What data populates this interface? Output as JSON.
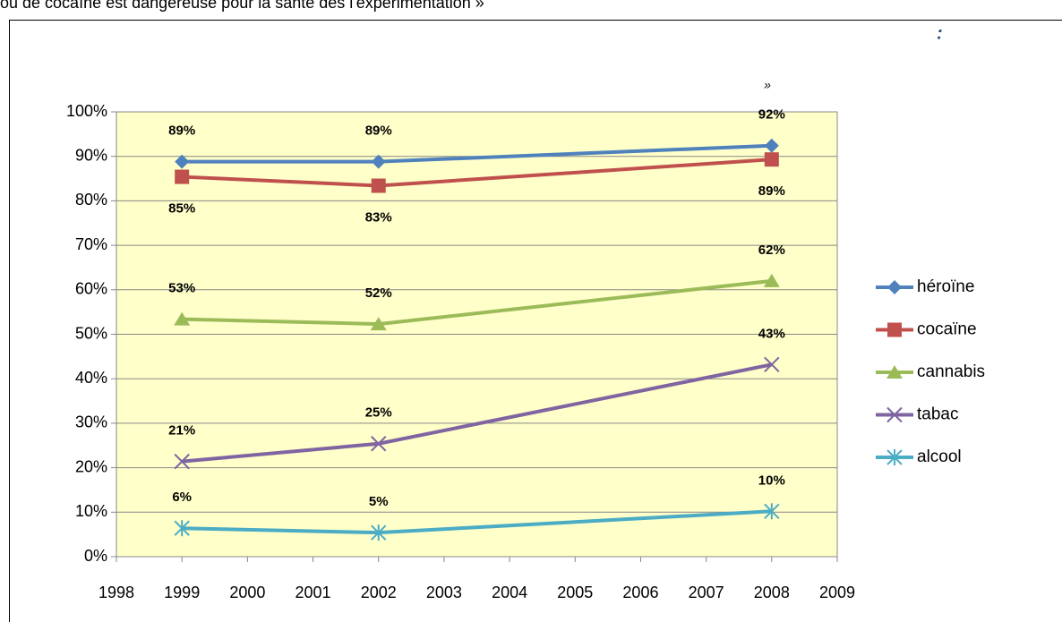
{
  "chart_data": {
    "type": "line",
    "title": "ou de cocaïne est dangereuse pour la santé dès l'expérimentation »",
    "annotations": [
      ":",
      "»"
    ],
    "x": [
      1999,
      2002,
      2008
    ],
    "xlim": [
      1998,
      2009
    ],
    "xticks": [
      1998,
      1999,
      2000,
      2001,
      2002,
      2003,
      2004,
      2005,
      2006,
      2007,
      2008,
      2009
    ],
    "ylim": [
      0,
      100
    ],
    "yticks": [
      {
        "value": 0,
        "label": "0%"
      },
      {
        "value": 10,
        "label": "10%"
      },
      {
        "value": 20,
        "label": "20%"
      },
      {
        "value": 30,
        "label": "30%"
      },
      {
        "value": 40,
        "label": "40%"
      },
      {
        "value": 50,
        "label": "50%"
      },
      {
        "value": 60,
        "label": "60%"
      },
      {
        "value": 70,
        "label": "70%"
      },
      {
        "value": 80,
        "label": "80%"
      },
      {
        "value": 90,
        "label": "90%"
      },
      {
        "value": 100,
        "label": "100%"
      }
    ],
    "grid": true,
    "plot_background": "#ffffc9",
    "legend": "right",
    "series": [
      {
        "name": "héroïne",
        "color": "#4f81bd",
        "marker": "diamond",
        "label_position": "above",
        "values": [
          88.8,
          88.8,
          92.4
        ],
        "value_labels": [
          "89%",
          "89%",
          "92%"
        ]
      },
      {
        "name": "cocaïne",
        "color": "#c0504d",
        "marker": "square",
        "label_position": "below",
        "values": [
          85.4,
          83.4,
          89.3
        ],
        "value_labels": [
          "85%",
          "83%",
          "89%"
        ]
      },
      {
        "name": "cannabis",
        "color": "#9bbb59",
        "marker": "triangle",
        "label_position": "above",
        "values": [
          53.4,
          52.3,
          62.0
        ],
        "value_labels": [
          "53%",
          "52%",
          "62%"
        ]
      },
      {
        "name": "tabac",
        "color": "#8064a2",
        "marker": "x",
        "label_position": "above",
        "values": [
          21.4,
          25.4,
          43.2
        ],
        "value_labels": [
          "21%",
          "25%",
          "43%"
        ]
      },
      {
        "name": "alcool",
        "color": "#4bacc6",
        "marker": "star",
        "label_position": "above",
        "values": [
          6.4,
          5.4,
          10.2
        ],
        "value_labels": [
          "6%",
          "5%",
          "10%"
        ]
      }
    ]
  }
}
